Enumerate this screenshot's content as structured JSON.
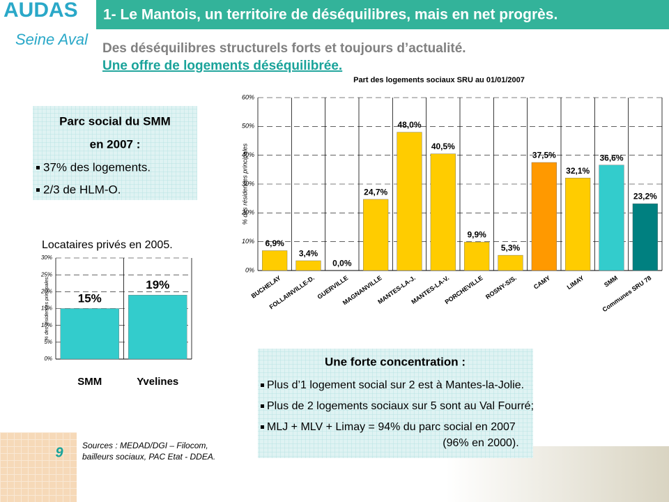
{
  "header": {
    "logo": "AUDAS",
    "logo_sub": "Seine Aval",
    "title": "1- Le Mantois, un territoire de déséquilibres, mais en net progrès.",
    "subtitle": "Des déséquilibres structurels forts et toujours d’actualité.",
    "section": "Une offre de logements déséquilibrée."
  },
  "box_left": {
    "title_1": "Parc social du SMM",
    "title_2": "en 2007 :",
    "bullets": [
      "37% des logements.",
      "2/3 de HLM-O."
    ]
  },
  "box_bottom": {
    "title": "Une forte concentration :",
    "bullets": [
      "Plus d’1 logement social sur 2 est à Mantes-la-Jolie.",
      "Plus de 2 logements sociaux sur 5 sont au Val Fourré;",
      "MLJ + MLV + Limay  = 94% du parc social en 2007"
    ],
    "note": "(96% en 2000)."
  },
  "sources": [
    "Sources : MEDAD/DGI – Filocom,",
    "bailleurs sociaux, PAC Etat - DDEA."
  ],
  "page_number": "9",
  "chart_data": [
    {
      "type": "bar",
      "title": "Part des logements sociaux SRU au 01/01/2007",
      "y_label": "% des résidences principales",
      "categories": [
        "BUCHELAY",
        "FOLLAINVILLE-D.",
        "GUERVILLE",
        "MAGNANVILLE",
        "MANTES-LA-J.",
        "MANTES-LA-V.",
        "PORCHEVILLE",
        "ROSNY-S/S.",
        "CAMY",
        "LIMAY",
        "SMM",
        "Communes SRU 78"
      ],
      "values": [
        6.9,
        3.4,
        0,
        24.7,
        48,
        40.5,
        9.9,
        5.3,
        37.5,
        32.1,
        36.6,
        23.2
      ],
      "value_labels": [
        "6,9%",
        "3,4%",
        "0,0%",
        "24,7%",
        "48,0%",
        "40,5%",
        "9,9%",
        "5,3%",
        "37,5%",
        "32,1%",
        "36,6%",
        "23,2%"
      ],
      "colors": [
        "#ffcc00",
        "#ffcc00",
        "#ffcc00",
        "#ffcc00",
        "#ffcc00",
        "#ffcc00",
        "#ffcc00",
        "#ffcc00",
        "#ff9900",
        "#ffcc00",
        "#33cccc",
        "#008080"
      ],
      "ylim": [
        0,
        60
      ],
      "yticks": [
        {
          "value": 0,
          "label": "0%"
        },
        {
          "value": 10,
          "label": "10%"
        },
        {
          "value": 20,
          "label": "20%"
        },
        {
          "value": 30,
          "label": "30%"
        },
        {
          "value": 40,
          "label": "40%"
        },
        {
          "value": 50,
          "label": "50%"
        },
        {
          "value": 60,
          "label": "60%"
        }
      ],
      "grid": true
    },
    {
      "type": "bar",
      "title": "Locataires privés en 2005.",
      "y_label": "% des résidences principales.",
      "categories": [
        "SMM",
        "Yvelines"
      ],
      "values": [
        15,
        19
      ],
      "value_labels": [
        "15%",
        "19%"
      ],
      "color": "#33cccc",
      "ylim": [
        0,
        30
      ],
      "yticks": [
        {
          "value": 0,
          "label": "0%"
        },
        {
          "value": 5,
          "label": "5%"
        },
        {
          "value": 10,
          "label": "10%"
        },
        {
          "value": 15,
          "label": "15%"
        },
        {
          "value": 20,
          "label": "20%"
        },
        {
          "value": 25,
          "label": "25%"
        },
        {
          "value": 30,
          "label": "30%"
        }
      ],
      "grid": true
    }
  ]
}
